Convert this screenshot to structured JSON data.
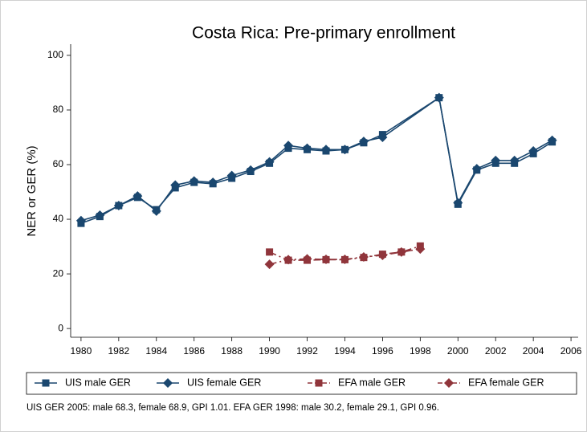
{
  "chart_data": {
    "type": "line",
    "title": "Costa Rica: Pre-primary enrollment",
    "y_label": "NER or GER (%)",
    "footnote": "UIS GER 2005: male 68.3, female 68.9, GPI 1.01. EFA GER 1998: male 30.2, female 29.1, GPI 0.96.",
    "xlim": [
      1979.45,
      2006.38
    ],
    "xticks": [
      1980,
      1982,
      1984,
      1986,
      1988,
      1990,
      1992,
      1994,
      1996,
      1998,
      2000,
      2002,
      2004,
      2006
    ],
    "ylim": [
      -3.2,
      104.1
    ],
    "yticks": [
      0,
      20,
      40,
      60,
      80,
      100
    ],
    "grid": false,
    "legend": "bottom",
    "series": [
      {
        "name": "UIS male GER",
        "color": "#1a476f",
        "marker": "square",
        "dash": false,
        "x": [
          1980,
          1981,
          1982,
          1983,
          1984,
          1985,
          1986,
          1987,
          1988,
          1989,
          1990,
          1991,
          1992,
          1993,
          1994,
          1995,
          1996,
          1999,
          2000,
          2001,
          2002,
          2003,
          2004,
          2005
        ],
        "values": [
          38.5,
          41,
          45,
          48,
          43.5,
          51.5,
          53.5,
          53,
          55,
          57.5,
          60.5,
          66,
          65.5,
          65,
          65.5,
          68,
          71,
          84.5,
          45.5,
          58,
          60.5,
          60.5,
          64,
          68.3
        ]
      },
      {
        "name": "UIS female GER",
        "color": "#1a476f",
        "marker": "diamond",
        "dash": false,
        "x": [
          1980,
          1981,
          1982,
          1983,
          1984,
          1985,
          1986,
          1987,
          1988,
          1989,
          1990,
          1991,
          1992,
          1993,
          1994,
          1995,
          1996,
          1999,
          2000,
          2001,
          2002,
          2003,
          2004,
          2005
        ],
        "values": [
          39.5,
          41.5,
          45,
          48.5,
          43,
          52.5,
          54,
          53.5,
          56,
          58,
          61,
          67,
          66,
          65.5,
          65.5,
          68.5,
          70,
          84.5,
          46,
          58.5,
          61.5,
          61.5,
          65,
          68.9
        ]
      },
      {
        "name": "EFA male GER",
        "color": "#90353b",
        "marker": "square",
        "dash": true,
        "x": [
          1990,
          1991,
          1992,
          1993,
          1994,
          1995,
          1996,
          1997,
          1998
        ],
        "values": [
          28,
          25,
          25,
          25.2,
          25.2,
          26,
          27.2,
          28,
          30.2
        ]
      },
      {
        "name": "EFA female GER",
        "color": "#90353b",
        "marker": "diamond",
        "dash": true,
        "x": [
          1990,
          1991,
          1992,
          1993,
          1994,
          1995,
          1996,
          1997,
          1998
        ],
        "values": [
          23.5,
          25.2,
          25.5,
          25.3,
          25.3,
          26.2,
          26.8,
          28,
          29.1
        ]
      }
    ]
  }
}
